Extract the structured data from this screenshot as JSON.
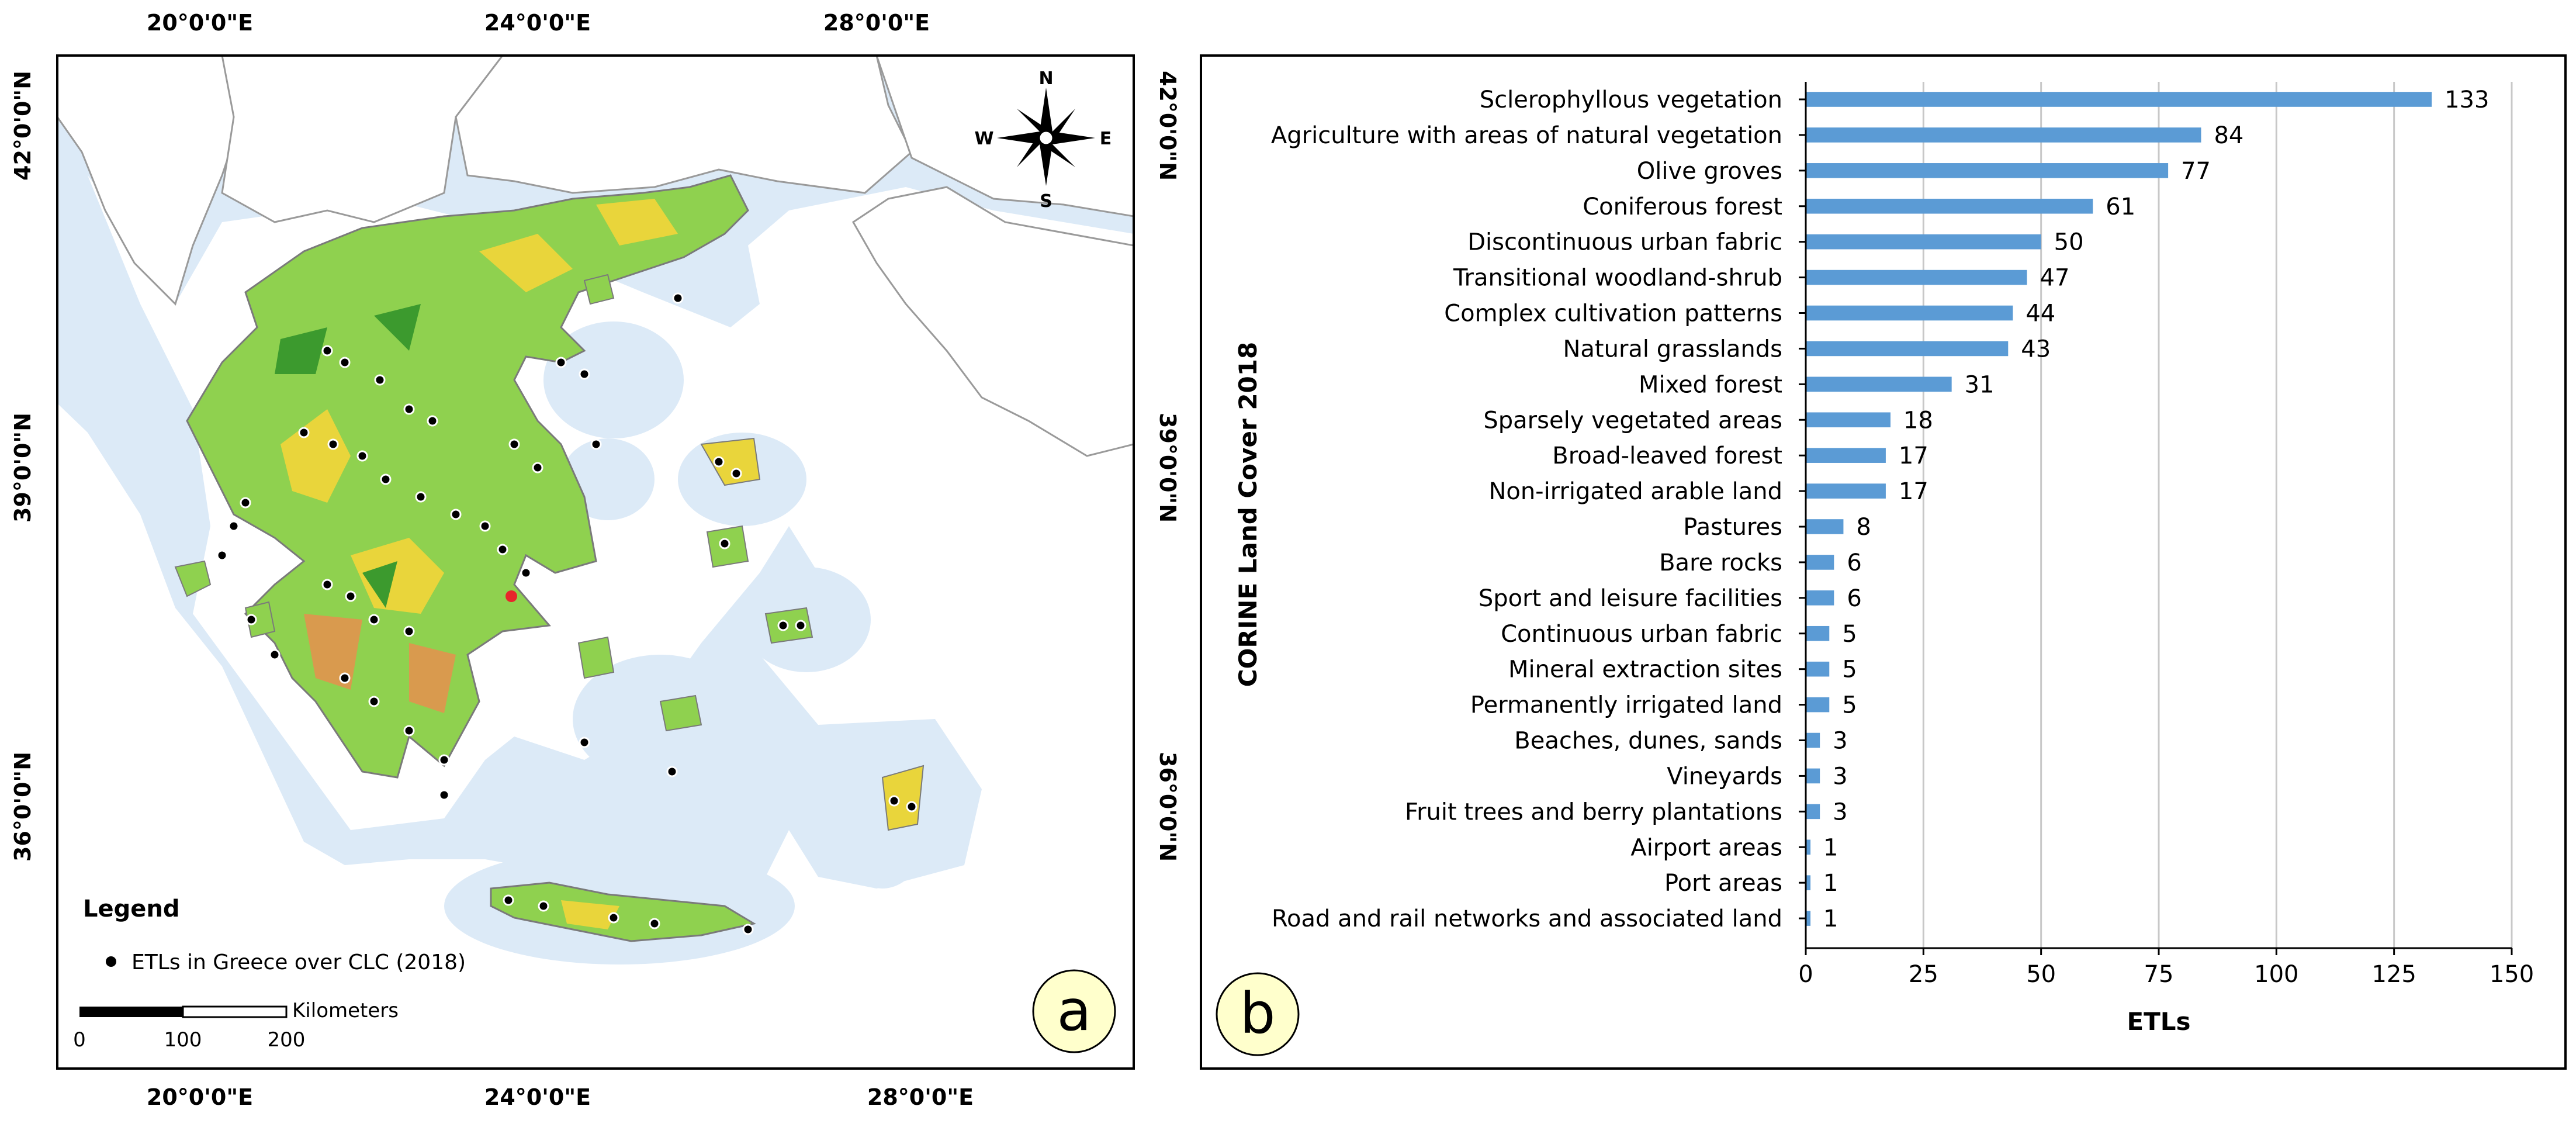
{
  "panel_a": {
    "label": "a",
    "lon_labels": [
      "20°0'0\"E",
      "24°0'0\"E",
      "28°0'0\"E"
    ],
    "lat_labels": [
      "42°0'0\"N",
      "39°0'0\"N",
      "36°0'0\"N"
    ],
    "north_arrow": {
      "n": "N",
      "s": "S",
      "e": "E",
      "w": "W"
    },
    "legend": {
      "title": "Legend",
      "item": "ETLs in Greece over CLC (2018)"
    },
    "scale_bar": {
      "unit": "Kilometers",
      "ticks": [
        "0",
        "100",
        "200"
      ]
    },
    "colors": {
      "sea": "#ffffff",
      "buffer": "#dceaf7",
      "land_other": "#ffffff",
      "greece_green": "#8fd14f",
      "greece_yellow": "#e9d53b",
      "greece_orange": "#d99a4e",
      "forest": "#3c9a2e",
      "points": "#000000"
    }
  },
  "chart_data": {
    "type": "bar",
    "orientation": "horizontal",
    "panel_label": "b",
    "title": "",
    "xlabel": "ETLs",
    "ylabel": "CORINE Land Cover 2018",
    "xlim": [
      0,
      150
    ],
    "xticks": [
      0,
      25,
      50,
      75,
      100,
      125,
      150
    ],
    "grid": "vertical",
    "bar_color": "#5b9bd5",
    "categories": [
      "Sclerophyllous vegetation",
      "Agriculture with areas of natural vegetation",
      "Olive groves",
      "Coniferous forest",
      "Discontinuous urban fabric",
      "Transitional woodland-shrub",
      "Complex cultivation patterns",
      "Natural grasslands",
      "Mixed forest",
      "Sparsely vegetated areas",
      "Broad-leaved forest",
      "Non-irrigated arable land",
      "Pastures",
      "Bare rocks",
      "Sport and leisure facilities",
      "Continuous urban fabric",
      "Mineral extraction sites",
      "Permanently irrigated land",
      "Beaches, dunes, sands",
      "Vineyards",
      "Fruit trees and berry plantations",
      "Airport areas",
      "Port areas",
      "Road and rail networks and associated land"
    ],
    "values": [
      133,
      84,
      77,
      61,
      50,
      47,
      44,
      43,
      31,
      18,
      17,
      17,
      8,
      6,
      6,
      5,
      5,
      5,
      3,
      3,
      3,
      1,
      1,
      1
    ]
  }
}
